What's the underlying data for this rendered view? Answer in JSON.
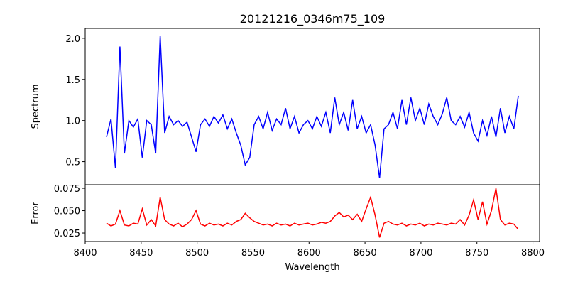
{
  "chart_data": [
    {
      "type": "line",
      "title": "20121216_0346m75_109",
      "ylabel": "Spectrum",
      "xlabel": "",
      "color": "#0000ff",
      "xlim": [
        8400,
        8806
      ],
      "ylim": [
        0.22,
        2.12
      ],
      "yticks": [
        0.5,
        1.0,
        1.5,
        2.0
      ],
      "ytick_labels": [
        "0.5",
        "1.0",
        "1.5",
        "2.0"
      ],
      "x_start": 8419,
      "x_step": 4,
      "values": [
        0.8,
        1.02,
        0.42,
        1.9,
        0.6,
        1.0,
        0.92,
        1.02,
        0.55,
        1.0,
        0.95,
        0.6,
        2.03,
        0.85,
        1.05,
        0.95,
        1.0,
        0.93,
        0.98,
        0.8,
        0.62,
        0.95,
        1.02,
        0.93,
        1.05,
        0.97,
        1.07,
        0.9,
        1.02,
        0.85,
        0.7,
        0.46,
        0.55,
        0.95,
        1.05,
        0.9,
        1.1,
        0.88,
        1.02,
        0.95,
        1.15,
        0.9,
        1.05,
        0.85,
        0.95,
        1.0,
        0.9,
        1.05,
        0.93,
        1.1,
        0.85,
        1.28,
        0.95,
        1.1,
        0.88,
        1.25,
        0.9,
        1.05,
        0.85,
        0.95,
        0.7,
        0.3,
        0.9,
        0.95,
        1.1,
        0.9,
        1.25,
        0.95,
        1.28,
        1.0,
        1.15,
        0.95,
        1.2,
        1.05,
        0.95,
        1.08,
        1.28,
        1.0,
        0.95,
        1.05,
        0.92,
        1.1,
        0.85,
        0.75,
        1.0,
        0.82,
        1.05,
        0.8,
        1.15,
        0.85,
        1.05,
        0.9,
        1.3
      ]
    },
    {
      "type": "line",
      "ylabel": "Error",
      "xlabel": "Wavelength",
      "color": "#ff0000",
      "xlim": [
        8400,
        8806
      ],
      "ylim": [
        0.0155,
        0.079
      ],
      "yticks": [
        0.025,
        0.05,
        0.075
      ],
      "ytick_labels": [
        "0.025",
        "0.050",
        "0.075"
      ],
      "xticks": [
        8400,
        8450,
        8500,
        8550,
        8600,
        8650,
        8700,
        8750,
        8800
      ],
      "xtick_labels": [
        "8400",
        "8450",
        "8500",
        "8550",
        "8600",
        "8650",
        "8700",
        "8750",
        "8800"
      ],
      "x_start": 8419,
      "x_step": 4,
      "values": [
        0.036,
        0.033,
        0.035,
        0.05,
        0.034,
        0.033,
        0.036,
        0.035,
        0.052,
        0.034,
        0.04,
        0.033,
        0.065,
        0.04,
        0.035,
        0.033,
        0.036,
        0.032,
        0.035,
        0.04,
        0.05,
        0.035,
        0.033,
        0.036,
        0.034,
        0.035,
        0.033,
        0.036,
        0.034,
        0.038,
        0.04,
        0.047,
        0.042,
        0.038,
        0.036,
        0.034,
        0.035,
        0.033,
        0.036,
        0.034,
        0.035,
        0.033,
        0.036,
        0.034,
        0.035,
        0.036,
        0.034,
        0.035,
        0.037,
        0.036,
        0.038,
        0.044,
        0.048,
        0.043,
        0.045,
        0.04,
        0.046,
        0.038,
        0.052,
        0.065,
        0.045,
        0.02,
        0.036,
        0.038,
        0.035,
        0.034,
        0.036,
        0.033,
        0.035,
        0.034,
        0.036,
        0.033,
        0.035,
        0.034,
        0.036,
        0.035,
        0.034,
        0.036,
        0.035,
        0.04,
        0.034,
        0.045,
        0.062,
        0.04,
        0.06,
        0.035,
        0.05,
        0.075,
        0.04,
        0.034,
        0.036,
        0.035,
        0.029
      ]
    }
  ]
}
